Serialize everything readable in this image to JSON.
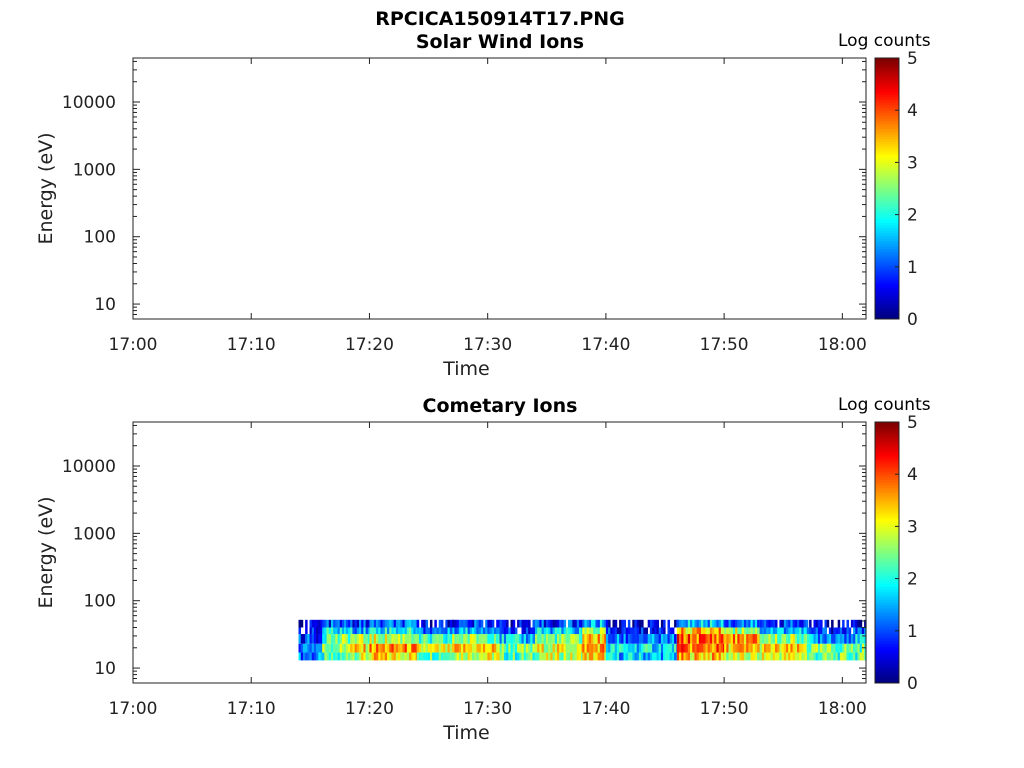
{
  "figure": {
    "filename_title": "RPCICA150914T17.PNG"
  },
  "chart_data": [
    {
      "type": "heatmap",
      "title": "Solar Wind Ions",
      "xlabel": "Time",
      "ylabel": "Energy (eV)",
      "x_ticks": [
        "17:00",
        "17:10",
        "17:20",
        "17:30",
        "17:40",
        "17:50",
        "18:00"
      ],
      "x_range": [
        "17:00",
        "18:02"
      ],
      "y_scale": "log",
      "y_ticks": [
        10,
        100,
        1000,
        10000
      ],
      "y_range": [
        6,
        45000
      ],
      "colorbar": {
        "label": "Log counts",
        "ticks": [
          0,
          1,
          2,
          3,
          4,
          5
        ],
        "range": [
          0,
          5
        ],
        "colormap": "jet"
      },
      "data_present": false,
      "cells": []
    },
    {
      "type": "heatmap",
      "title": "Cometary Ions",
      "xlabel": "Time",
      "ylabel": "Energy (eV)",
      "x_ticks": [
        "17:00",
        "17:10",
        "17:20",
        "17:30",
        "17:40",
        "17:50",
        "18:00"
      ],
      "x_range": [
        "17:00",
        "18:02"
      ],
      "y_scale": "log",
      "y_ticks": [
        10,
        100,
        1000,
        10000
      ],
      "y_range": [
        6,
        45000
      ],
      "colorbar": {
        "label": "Log counts",
        "ticks": [
          0,
          1,
          2,
          3,
          4,
          5
        ],
        "range": [
          0,
          5
        ],
        "colormap": "jet"
      },
      "data_present": true,
      "data_time_range": [
        "17:14",
        "18:02"
      ],
      "energy_bands_eV": [
        {
          "band": "13-17",
          "levels": [
            {
              "from": "17:14",
              "to": "17:16",
              "value": 1.2
            },
            {
              "from": "17:16",
              "to": "17:18",
              "value": 2.0
            },
            {
              "from": "17:18",
              "to": "17:20",
              "value": 2.8
            },
            {
              "from": "17:20",
              "to": "17:24",
              "value": 3.2
            },
            {
              "from": "17:24",
              "to": "17:27",
              "value": 2.4
            },
            {
              "from": "17:27",
              "to": "17:31",
              "value": 3.0
            },
            {
              "from": "17:31",
              "to": "17:34",
              "value": 2.2
            },
            {
              "from": "17:34",
              "to": "17:38",
              "value": 2.8
            },
            {
              "from": "17:38",
              "to": "17:40",
              "value": 3.3
            },
            {
              "from": "17:40",
              "to": "17:46",
              "value": 1.6
            },
            {
              "from": "17:46",
              "to": "17:50",
              "value": 3.4
            },
            {
              "from": "17:50",
              "to": "17:53",
              "value": 2.8
            },
            {
              "from": "17:53",
              "to": "17:57",
              "value": 3.0
            },
            {
              "from": "17:57",
              "to": "18:02",
              "value": 2.3
            }
          ]
        },
        {
          "band": "17-23",
          "levels": [
            {
              "from": "17:14",
              "to": "17:16",
              "value": 1.4
            },
            {
              "from": "17:16",
              "to": "17:18",
              "value": 2.6
            },
            {
              "from": "17:18",
              "to": "17:20",
              "value": 3.2
            },
            {
              "from": "17:20",
              "to": "17:24",
              "value": 3.6
            },
            {
              "from": "17:24",
              "to": "17:27",
              "value": 2.9
            },
            {
              "from": "17:27",
              "to": "17:31",
              "value": 3.3
            },
            {
              "from": "17:31",
              "to": "17:34",
              "value": 2.4
            },
            {
              "from": "17:34",
              "to": "17:38",
              "value": 3.0
            },
            {
              "from": "17:38",
              "to": "17:40",
              "value": 3.6
            },
            {
              "from": "17:40",
              "to": "17:46",
              "value": 1.8
            },
            {
              "from": "17:46",
              "to": "17:50",
              "value": 3.8
            },
            {
              "from": "17:50",
              "to": "17:53",
              "value": 3.4
            },
            {
              "from": "17:53",
              "to": "17:57",
              "value": 3.2
            },
            {
              "from": "17:57",
              "to": "18:02",
              "value": 2.4
            }
          ]
        },
        {
          "band": "23-32",
          "levels": [
            {
              "from": "17:14",
              "to": "17:16",
              "value": 0.9
            },
            {
              "from": "17:16",
              "to": "17:18",
              "value": 2.4
            },
            {
              "from": "17:18",
              "to": "17:20",
              "value": 2.6
            },
            {
              "from": "17:20",
              "to": "17:24",
              "value": 2.8
            },
            {
              "from": "17:24",
              "to": "17:27",
              "value": 2.0
            },
            {
              "from": "17:27",
              "to": "17:31",
              "value": 2.6
            },
            {
              "from": "17:31",
              "to": "17:34",
              "value": 1.6
            },
            {
              "from": "17:34",
              "to": "17:38",
              "value": 2.4
            },
            {
              "from": "17:38",
              "to": "17:40",
              "value": 3.4
            },
            {
              "from": "17:40",
              "to": "17:46",
              "value": 1.1
            },
            {
              "from": "17:46",
              "to": "17:50",
              "value": 3.9
            },
            {
              "from": "17:50",
              "to": "17:53",
              "value": 3.6
            },
            {
              "from": "17:53",
              "to": "17:57",
              "value": 2.6
            },
            {
              "from": "17:57",
              "to": "18:02",
              "value": 1.5
            }
          ]
        },
        {
          "band": "32-40",
          "levels": [
            {
              "from": "17:14",
              "to": "17:16",
              "value": 0.5
            },
            {
              "from": "17:16",
              "to": "17:18",
              "value": 1.8
            },
            {
              "from": "17:18",
              "to": "17:20",
              "value": 1.6
            },
            {
              "from": "17:20",
              "to": "17:24",
              "value": 1.9
            },
            {
              "from": "17:24",
              "to": "17:27",
              "value": 1.2
            },
            {
              "from": "17:27",
              "to": "17:31",
              "value": 1.6
            },
            {
              "from": "17:31",
              "to": "17:34",
              "value": 0.8
            },
            {
              "from": "17:34",
              "to": "17:38",
              "value": 1.6
            },
            {
              "from": "17:38",
              "to": "17:40",
              "value": 2.6
            },
            {
              "from": "17:40",
              "to": "17:46",
              "value": 0.6
            },
            {
              "from": "17:46",
              "to": "17:50",
              "value": 3.4
            },
            {
              "from": "17:50",
              "to": "17:53",
              "value": 2.8
            },
            {
              "from": "17:53",
              "to": "17:57",
              "value": 1.6
            },
            {
              "from": "17:57",
              "to": "18:02",
              "value": 0.8
            }
          ]
        },
        {
          "band": "40-52",
          "levels": [
            {
              "from": "17:14",
              "to": "17:16",
              "value": 0.3
            },
            {
              "from": "17:16",
              "to": "17:18",
              "value": 0.9
            },
            {
              "from": "17:18",
              "to": "17:20",
              "value": 0.8
            },
            {
              "from": "17:20",
              "to": "17:24",
              "value": 1.0
            },
            {
              "from": "17:24",
              "to": "17:27",
              "value": 0.5
            },
            {
              "from": "17:27",
              "to": "17:31",
              "value": 0.8
            },
            {
              "from": "17:31",
              "to": "17:34",
              "value": 0.4
            },
            {
              "from": "17:34",
              "to": "17:38",
              "value": 0.8
            },
            {
              "from": "17:38",
              "to": "17:40",
              "value": 1.4
            },
            {
              "from": "17:40",
              "to": "17:46",
              "value": 0.3
            },
            {
              "from": "17:46",
              "to": "17:50",
              "value": 1.6
            },
            {
              "from": "17:50",
              "to": "17:53",
              "value": 1.2
            },
            {
              "from": "17:53",
              "to": "17:57",
              "value": 0.8
            },
            {
              "from": "17:57",
              "to": "18:02",
              "value": 0.4
            }
          ]
        }
      ]
    }
  ]
}
